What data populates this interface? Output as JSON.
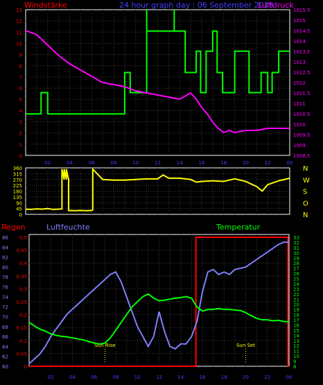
{
  "chart_data": [
    {
      "type": "line",
      "title": "24 hour graph day : 06 September 2018",
      "left_axis_label": "Windstärke",
      "right_axis_label": "Luftdruck",
      "x_tick_labels": [
        "02",
        "04",
        "06",
        "08",
        "10",
        "12",
        "14",
        "16",
        "18",
        "20",
        "22",
        "00"
      ],
      "left_ylim": [
        0,
        13
      ],
      "left_ticks": [
        "0",
        "1",
        "2",
        "3",
        "4",
        "5",
        "6",
        "7",
        "8",
        "9",
        "10",
        "11",
        "12",
        "13"
      ],
      "right_ylim": [
        1008.5,
        1015.5
      ],
      "right_ticks": [
        "1008.5",
        "1009",
        "1009.5",
        "1010",
        "1010.5",
        "1011",
        "1011.5",
        "1012",
        "1012.5",
        "1013",
        "1013.5",
        "1014",
        "1014.5",
        "1015",
        "1015.5"
      ],
      "grid": true,
      "colors": {
        "wind": "#00ff00",
        "pressure": "#ff00ff",
        "left_axis": "#ff0000",
        "right_axis": "#ff00ff",
        "title": "#4040ff"
      },
      "series": [
        {
          "axis": "left",
          "x": [
            0,
            1.4,
            1.4,
            2,
            2,
            9,
            9,
            9.5,
            9.5,
            11,
            11,
            11,
            11,
            13.5,
            13.5,
            13.5,
            13.5,
            14.5,
            14.5,
            15.5,
            15.5,
            15.9,
            15.9,
            16.4,
            16.4,
            17,
            17,
            17.4,
            17.4,
            17.9,
            17.9,
            19,
            19,
            20.3,
            20.3,
            21,
            21,
            21.4,
            21.4,
            22,
            22,
            22.4,
            22.4,
            23,
            23,
            24
          ],
          "y": [
            3.7,
            3.7,
            5.6,
            5.6,
            3.7,
            3.7,
            7.4,
            7.4,
            5.6,
            5.6,
            13,
            13,
            11.1,
            11.1,
            13,
            13,
            11.1,
            11.1,
            7.4,
            7.4,
            9.3,
            9.3,
            5.6,
            5.6,
            9.3,
            9.3,
            11.1,
            11.1,
            7.4,
            7.4,
            5.6,
            5.6,
            9.3,
            9.3,
            5.6,
            5.6,
            5.6,
            5.6,
            7.4,
            7.4,
            5.6,
            5.6,
            7.4,
            7.4,
            9.3,
            9.3
          ]
        },
        {
          "axis": "right",
          "x": [
            0,
            1,
            2,
            3,
            4,
            5,
            6,
            7,
            8,
            9,
            10,
            11,
            12,
            13,
            14,
            15,
            15.5,
            16,
            16.5,
            17,
            17.5,
            18,
            18.5,
            19,
            20,
            21,
            22,
            23,
            24
          ],
          "y": [
            1014.5,
            1014.3,
            1013.8,
            1013.3,
            1012.9,
            1012.6,
            1012.3,
            1012,
            1011.9,
            1011.8,
            1011.6,
            1011.5,
            1011.4,
            1011.3,
            1011.2,
            1011.5,
            1011.2,
            1010.8,
            1010.5,
            1010.1,
            1009.8,
            1009.6,
            1009.7,
            1009.6,
            1009.7,
            1009.7,
            1009.8,
            1009.8,
            1009.8
          ]
        }
      ]
    },
    {
      "type": "line",
      "title": "",
      "ylim": [
        0,
        360
      ],
      "y_ticks": [
        "0",
        "45",
        "90",
        "135",
        "180",
        "225",
        "270",
        "315",
        "360"
      ],
      "right_labels": [
        "N",
        "W",
        "S",
        "O",
        "N"
      ],
      "color": "#ffff00",
      "series": [
        {
          "x": [
            0,
            0.5,
            1,
            1.5,
            2,
            2.5,
            3,
            3.3,
            3.3,
            3.5,
            3.5,
            3.7,
            3.7,
            3.9,
            3.9,
            4.5,
            5,
            5.5,
            6,
            6.1,
            6.1,
            7,
            8,
            9,
            10,
            11,
            12,
            12.5,
            13,
            14,
            15,
            15.5,
            16,
            17,
            18,
            19,
            20,
            21,
            21.5,
            22,
            23,
            24
          ],
          "y": [
            40,
            38,
            42,
            40,
            45,
            38,
            40,
            42,
            350,
            270,
            350,
            270,
            350,
            270,
            30,
            28,
            30,
            28,
            30,
            35,
            350,
            270,
            265,
            265,
            270,
            275,
            275,
            305,
            280,
            280,
            270,
            250,
            255,
            260,
            255,
            275,
            255,
            215,
            180,
            230,
            260,
            280
          ]
        }
      ]
    },
    {
      "type": "line",
      "title": "",
      "labels": {
        "rain": "Regen",
        "humidity": "Luftfeuchte",
        "temperature": "Temperatur"
      },
      "colors": {
        "rain": "#ff0000",
        "humidity": "#8080ff",
        "temperature": "#00ff00"
      },
      "rain_ylim": [
        0,
        0.5
      ],
      "rain_ticks": [
        "0",
        "0.05",
        "0.1",
        "0.15",
        "0.2",
        "0.25",
        "0.3",
        "0.35",
        "0.4",
        "0.45",
        "0.5"
      ],
      "humidity_ylim": [
        60,
        86
      ],
      "humidity_ticks": [
        "60",
        "62",
        "64",
        "66",
        "68",
        "70",
        "72",
        "74",
        "76",
        "78",
        "80",
        "82",
        "84",
        "86"
      ],
      "temperature_ylim": [
        8,
        33
      ],
      "temperature_ticks": [
        "8",
        "9",
        "10",
        "11",
        "12",
        "13",
        "14",
        "15",
        "16",
        "17",
        "18",
        "19",
        "20",
        "21",
        "22",
        "23",
        "24",
        "25",
        "26",
        "27",
        "28",
        "29",
        "30",
        "31",
        "32",
        "33"
      ],
      "annotations": [
        {
          "label": "Sun Rise",
          "x": 7
        },
        {
          "label": "Sun Set",
          "x": 20
        }
      ],
      "series": [
        {
          "name": "Regen",
          "axis": "rain",
          "x": [
            0,
            15.4,
            15.4,
            23.9,
            23.9,
            24
          ],
          "y": [
            0,
            0,
            0.5,
            0.5,
            0,
            0
          ]
        },
        {
          "name": "Luftfeuchte",
          "axis": "humidity",
          "x": [
            0,
            0.5,
            1,
            1.5,
            2,
            2.5,
            3,
            3.5,
            4,
            4.5,
            5,
            5.5,
            6,
            6.5,
            7,
            7.5,
            8,
            8.5,
            9,
            9.5,
            10,
            10.5,
            11,
            11.5,
            12,
            12.5,
            13,
            13.5,
            14,
            14.5,
            15,
            15.5,
            16,
            16.5,
            17,
            17.5,
            18,
            18.5,
            19,
            20,
            21,
            22,
            23,
            23.5,
            24
          ],
          "y": [
            60.5,
            61.5,
            62.5,
            64,
            66,
            67.5,
            69,
            70.5,
            71.5,
            72.5,
            73.5,
            74.5,
            75.5,
            76.5,
            77.5,
            78.5,
            79,
            77,
            74,
            71,
            68,
            66,
            64,
            66,
            71,
            67,
            64,
            63.5,
            64.5,
            64.5,
            66,
            69,
            75,
            79,
            79.5,
            78.5,
            79,
            78.5,
            79.5,
            80,
            81.5,
            83,
            84.5,
            85,
            85
          ]
        },
        {
          "name": "Temperatur",
          "axis": "temperature",
          "x": [
            0,
            0.5,
            1,
            1.5,
            2,
            2.5,
            3,
            3.5,
            4,
            4.5,
            5,
            5.5,
            6,
            6.5,
            7,
            7.5,
            8,
            8.5,
            9,
            9.5,
            10,
            10.5,
            11,
            11.5,
            12,
            12.5,
            13,
            13.5,
            14,
            14.5,
            15,
            15.5,
            16,
            16.5,
            17,
            17.5,
            18,
            18.5,
            19,
            19.5,
            20,
            20.5,
            21,
            21.5,
            22,
            22.5,
            23,
            23.5,
            24
          ],
          "y": [
            16.5,
            15.8,
            15.2,
            14.8,
            14.3,
            14,
            13.8,
            13.7,
            13.5,
            13.3,
            13.1,
            12.8,
            12.5,
            12.3,
            12.5,
            13.5,
            15,
            16.5,
            18,
            19.5,
            20.5,
            21.5,
            22,
            21.2,
            20.7,
            20.8,
            21,
            21.2,
            21.3,
            21.5,
            21.2,
            19.5,
            18.7,
            19,
            19,
            19.2,
            19,
            19,
            18.9,
            18.8,
            18.4,
            17.8,
            17.3,
            17,
            17,
            16.8,
            16.9,
            16.7,
            16.6
          ]
        }
      ]
    }
  ]
}
